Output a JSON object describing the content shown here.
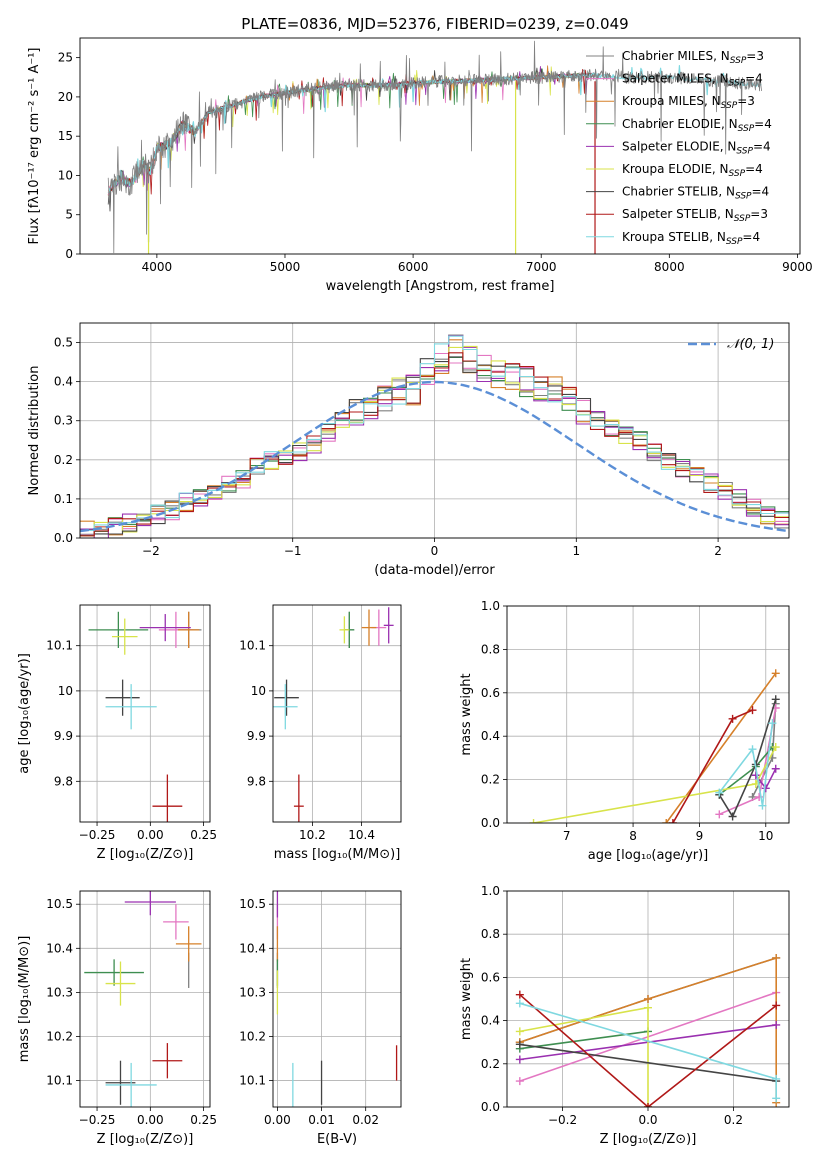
{
  "figure": {
    "title": "PLATE=0836, MJD=52376, FIBERID=0239, z=0.049"
  },
  "colors": {
    "Chabrier MILES": "#808080",
    "Salpeter MILES": "#e377c2",
    "Kroupa MILES": "#d6802a",
    "Chabrier ELODIE": "#3e8e50",
    "Salpeter ELODIE": "#9a30b0",
    "Kroupa ELODIE": "#d8e34a",
    "Chabrier STELIB": "#444444",
    "Salpeter STELIB": "#b01818",
    "Kroupa STELIB": "#7fd8e0",
    "normal_curve": "#5b8fd6"
  },
  "chart_data": [
    {
      "id": "spectrum",
      "type": "line",
      "xlabel": "wavelength [Angstrom, rest frame]",
      "ylabel": "Flux [fλ10⁻¹⁷ erg cm⁻² s⁻¹ A⁻¹]",
      "xlim": [
        3400,
        9020
      ],
      "ylim": [
        0,
        27.5
      ],
      "xticks": [
        4000,
        5000,
        6000,
        7000,
        8000,
        9000
      ],
      "yticks": [
        0,
        5,
        10,
        15,
        20,
        25
      ],
      "grid": false,
      "legend_position": "top-right",
      "series": [
        {
          "name": "Chabrier MILES",
          "label_plain": "Chabrier MILES, N",
          "sub": "SSP",
          "tail": "=3"
        },
        {
          "name": "Salpeter MILES",
          "label_plain": "Salpeter MILES, N",
          "sub": "SSP",
          "tail": "=4"
        },
        {
          "name": "Kroupa MILES",
          "label_plain": "Kroupa MILES, N",
          "sub": "SSP",
          "tail": "=3"
        },
        {
          "name": "Chabrier ELODIE",
          "label_plain": "Chabrier ELODIE, N",
          "sub": "SSP",
          "tail": "=4"
        },
        {
          "name": "Salpeter ELODIE",
          "label_plain": "Salpeter ELODIE, N",
          "sub": "SSP",
          "tail": "=4"
        },
        {
          "name": "Kroupa ELODIE",
          "label_plain": "Kroupa ELODIE, N",
          "sub": "SSP",
          "tail": "=4"
        },
        {
          "name": "Chabrier STELIB",
          "label_plain": "Chabrier STELIB, N",
          "sub": "SSP",
          "tail": "=4"
        },
        {
          "name": "Salpeter STELIB",
          "label_plain": "Salpeter STELIB, N",
          "sub": "SSP",
          "tail": "=3"
        },
        {
          "name": "Kroupa STELIB",
          "label_plain": "Kroupa STELIB, N",
          "sub": "SSP",
          "tail": "=4"
        }
      ],
      "continuum": {
        "x": [
          3620,
          3700,
          3800,
          3900,
          3950,
          4000,
          4100,
          4200,
          4300,
          4400,
          4500,
          4600,
          4800,
          5000,
          5200,
          5500,
          5800,
          6000,
          6300,
          6600,
          7000,
          7400,
          7600,
          8000,
          8400,
          8700
        ],
        "y": [
          8.0,
          9.5,
          9.0,
          11.5,
          10.5,
          13.5,
          14.0,
          16.5,
          15.5,
          18.0,
          18.5,
          19.0,
          20.0,
          20.5,
          21.0,
          21.5,
          21.5,
          21.8,
          22.0,
          22.2,
          22.5,
          22.8,
          22.5,
          22.5,
          22.0,
          21.5
        ]
      },
      "vertical_features": [
        {
          "series": "Kroupa ELODIE",
          "x": 6800,
          "y_from": 0,
          "y_to": 22
        },
        {
          "series": "Salpeter STELIB",
          "x": 7420,
          "y_from": 0,
          "y_to": 22
        },
        {
          "series": "Chabrier MILES",
          "x": 3935,
          "y_from": 1.5,
          "y_to": 12
        },
        {
          "series": "Kroupa ELODIE",
          "x": 3935,
          "y_from": 0,
          "y_to": 9
        }
      ]
    },
    {
      "id": "residual_histogram",
      "type": "histogram",
      "xlabel": "(data-model)/error",
      "ylabel": "Normed distribution",
      "xlim": [
        -2.5,
        2.5
      ],
      "ylim": [
        0,
        0.55
      ],
      "xticks": [
        -2,
        -1,
        0,
        1,
        2
      ],
      "yticks": [
        0.0,
        0.1,
        0.2,
        0.3,
        0.4,
        0.5
      ],
      "grid": true,
      "legend_position": "top-right",
      "legend_label": "𝒩(0, 1)",
      "bin_width": 0.1,
      "bin_start": -2.5,
      "envelope": [
        0.02,
        0.02,
        0.03,
        0.04,
        0.05,
        0.06,
        0.07,
        0.09,
        0.1,
        0.12,
        0.14,
        0.15,
        0.18,
        0.2,
        0.2,
        0.22,
        0.24,
        0.27,
        0.3,
        0.32,
        0.34,
        0.36,
        0.37,
        0.38,
        0.42,
        0.46,
        0.48,
        0.46,
        0.44,
        0.42,
        0.41,
        0.4,
        0.39,
        0.38,
        0.36,
        0.33,
        0.3,
        0.28,
        0.26,
        0.25,
        0.22,
        0.2,
        0.18,
        0.16,
        0.14,
        0.12,
        0.1,
        0.08,
        0.06,
        0.05
      ],
      "normal_curve": {
        "mean": 0,
        "std": 1
      }
    },
    {
      "id": "age_vs_Z",
      "type": "scatter",
      "xlabel": "Z [log₁₀(Z/Z⊙)]",
      "ylabel": "age  [log₁₀(age/yr)]",
      "xlim": [
        -0.33,
        0.28
      ],
      "ylim": [
        9.71,
        10.19
      ],
      "xticks": [
        -0.25,
        0.0,
        0.25
      ],
      "xticklabels": [
        "−0.25",
        "0.00",
        "0.25"
      ],
      "yticks": [
        9.8,
        9.9,
        10.0,
        10.1
      ],
      "grid": true,
      "points": [
        {
          "series": "Chabrier MILES",
          "x": 0.18,
          "y": 10.135,
          "xerr": 0.06,
          "yerr": 0.04
        },
        {
          "series": "Salpeter MILES",
          "x": 0.12,
          "y": 10.135,
          "xerr": 0.08,
          "yerr": 0.04
        },
        {
          "series": "Kroupa MILES",
          "x": 0.18,
          "y": 10.135,
          "xerr": 0.05,
          "yerr": 0.04
        },
        {
          "series": "Chabrier ELODIE",
          "x": -0.15,
          "y": 10.135,
          "xerr": 0.14,
          "yerr": 0.04
        },
        {
          "series": "Salpeter ELODIE",
          "x": 0.07,
          "y": 10.14,
          "xerr": 0.12,
          "yerr": 0.03
        },
        {
          "series": "Kroupa ELODIE",
          "x": -0.12,
          "y": 10.12,
          "xerr": 0.06,
          "yerr": 0.04
        },
        {
          "series": "Chabrier STELIB",
          "x": -0.13,
          "y": 9.985,
          "xerr": 0.08,
          "yerr": 0.04
        },
        {
          "series": "Salpeter STELIB",
          "x": 0.08,
          "y": 9.745,
          "xerr": 0.07,
          "yerr": 0.07
        },
        {
          "series": "Kroupa STELIB",
          "x": -0.09,
          "y": 9.965,
          "xerr": 0.12,
          "yerr": 0.05
        }
      ]
    },
    {
      "id": "age_vs_mass",
      "type": "scatter",
      "xlabel": "mass [log₁₀(M/M⊙)]",
      "ylabel": "",
      "xlim": [
        10.04,
        10.56
      ],
      "ylim": [
        9.71,
        10.19
      ],
      "xticks": [
        10.2,
        10.4
      ],
      "yticks": [
        9.8,
        9.9,
        10.0,
        10.1
      ],
      "grid": true,
      "points": [
        {
          "series": "Chabrier MILES",
          "x": 10.35,
          "y": 10.135,
          "xerr": 0.02,
          "yerr": 0.04
        },
        {
          "series": "Salpeter MILES",
          "x": 10.47,
          "y": 10.14,
          "xerr": 0.03,
          "yerr": 0.04
        },
        {
          "series": "Kroupa MILES",
          "x": 10.43,
          "y": 10.14,
          "xerr": 0.03,
          "yerr": 0.04
        },
        {
          "series": "Chabrier ELODIE",
          "x": 10.35,
          "y": 10.135,
          "xerr": 0.02,
          "yerr": 0.04
        },
        {
          "series": "Salpeter ELODIE",
          "x": 10.51,
          "y": 10.145,
          "xerr": 0.02,
          "yerr": 0.04
        },
        {
          "series": "Kroupa ELODIE",
          "x": 10.33,
          "y": 10.135,
          "xerr": 0.02,
          "yerr": 0.03
        },
        {
          "series": "Chabrier STELIB",
          "x": 10.095,
          "y": 9.985,
          "xerr": 0.05,
          "yerr": 0.04
        },
        {
          "series": "Salpeter STELIB",
          "x": 10.145,
          "y": 9.745,
          "xerr": 0.02,
          "yerr": 0.07
        },
        {
          "series": "Kroupa STELIB",
          "x": 10.09,
          "y": 9.965,
          "xerr": 0.05,
          "yerr": 0.05
        }
      ]
    },
    {
      "id": "massweight_vs_age",
      "type": "line",
      "xlabel": "age  [log₁₀(age/yr)]",
      "ylabel": "mass weight",
      "xlim": [
        6.1,
        10.35
      ],
      "ylim": [
        0,
        1
      ],
      "xticks": [
        7,
        8,
        9,
        10
      ],
      "yticks": [
        0.0,
        0.2,
        0.4,
        0.6,
        0.8,
        1.0
      ],
      "grid": true,
      "series": [
        {
          "name": "Chabrier MILES",
          "x": [
            9.8,
            10.1,
            10.15
          ],
          "y": [
            0.12,
            0.3,
            0.55
          ]
        },
        {
          "name": "Salpeter MILES",
          "x": [
            9.3,
            9.9,
            10.15
          ],
          "y": [
            0.04,
            0.12,
            0.53
          ]
        },
        {
          "name": "Kroupa MILES",
          "x": [
            8.5,
            10.15
          ],
          "y": [
            0.0,
            0.69
          ]
        },
        {
          "name": "Chabrier ELODIE",
          "x": [
            9.3,
            9.85,
            10.1
          ],
          "y": [
            0.13,
            0.26,
            0.35
          ]
        },
        {
          "name": "Salpeter ELODIE",
          "x": [
            9.85,
            10.0,
            10.15
          ],
          "y": [
            0.22,
            0.16,
            0.25
          ]
        },
        {
          "name": "Kroupa ELODIE",
          "x": [
            6.5,
            9.85,
            10.15
          ],
          "y": [
            0.0,
            0.18,
            0.35
          ]
        },
        {
          "name": "Chabrier STELIB",
          "x": [
            9.3,
            9.5,
            9.85,
            10.15
          ],
          "y": [
            0.13,
            0.03,
            0.27,
            0.57
          ]
        },
        {
          "name": "Salpeter STELIB",
          "x": [
            8.6,
            9.5,
            9.8
          ],
          "y": [
            0.0,
            0.48,
            0.52
          ]
        },
        {
          "name": "Kroupa STELIB",
          "x": [
            9.3,
            9.8,
            9.95,
            10.1
          ],
          "y": [
            0.14,
            0.34,
            0.08,
            0.46
          ]
        }
      ]
    },
    {
      "id": "mass_vs_Z",
      "type": "scatter",
      "xlabel": "Z [log₁₀(Z/Z⊙)]",
      "ylabel": "mass [log₁₀(M/M⊙)]",
      "xlim": [
        -0.33,
        0.28
      ],
      "ylim": [
        10.04,
        10.53
      ],
      "xticks": [
        -0.25,
        0.0,
        0.25
      ],
      "xticklabels": [
        "−0.25",
        "0.00",
        "0.25"
      ],
      "yticks": [
        10.1,
        10.2,
        10.3,
        10.4,
        10.5
      ],
      "grid": true,
      "points": [
        {
          "series": "Chabrier MILES",
          "x": 0.18,
          "y": 10.35,
          "xerr": 0.0,
          "yerr": 0.04
        },
        {
          "series": "Salpeter MILES",
          "x": 0.12,
          "y": 10.46,
          "xerr": 0.06,
          "yerr": 0.04
        },
        {
          "series": "Kroupa MILES",
          "x": 0.18,
          "y": 10.41,
          "xerr": 0.06,
          "yerr": 0.04
        },
        {
          "series": "Chabrier ELODIE",
          "x": -0.17,
          "y": 10.345,
          "xerr": 0.14,
          "yerr": 0.03
        },
        {
          "series": "Salpeter ELODIE",
          "x": 0.0,
          "y": 10.505,
          "xerr": 0.12,
          "yerr": 0.03
        },
        {
          "series": "Kroupa ELODIE",
          "x": -0.14,
          "y": 10.32,
          "xerr": 0.07,
          "yerr": 0.05
        },
        {
          "series": "Chabrier STELIB",
          "x": -0.14,
          "y": 10.095,
          "xerr": 0.07,
          "yerr": 0.05
        },
        {
          "series": "Salpeter STELIB",
          "x": 0.08,
          "y": 10.145,
          "xerr": 0.07,
          "yerr": 0.04
        },
        {
          "series": "Kroupa STELIB",
          "x": -0.09,
          "y": 10.09,
          "xerr": 0.12,
          "yerr": 0.05
        }
      ]
    },
    {
      "id": "mass_vs_ebv",
      "type": "scatter",
      "xlabel": "E(B-V)",
      "ylabel": "",
      "xlim": [
        -0.001,
        0.028
      ],
      "ylim": [
        10.04,
        10.53
      ],
      "xticks": [
        0.0,
        0.01,
        0.02
      ],
      "xticklabels": [
        "0.00",
        "0.01",
        "0.02"
      ],
      "yticks": [
        10.1,
        10.2,
        10.3,
        10.4,
        10.5
      ],
      "grid": true,
      "points": [
        {
          "series": "Chabrier MILES",
          "x": 0.0,
          "y": 10.35,
          "xerr": 0.0,
          "yerr": 0.04
        },
        {
          "series": "Salpeter MILES",
          "x": 0.0,
          "y": 10.46,
          "xerr": 0.0,
          "yerr": 0.04
        },
        {
          "series": "Kroupa MILES",
          "x": 0.0,
          "y": 10.41,
          "xerr": 0.0,
          "yerr": 0.04
        },
        {
          "series": "Chabrier ELODIE",
          "x": 0.0,
          "y": 10.345,
          "xerr": 0.0,
          "yerr": 0.03
        },
        {
          "series": "Salpeter ELODIE",
          "x": 0.0,
          "y": 10.5,
          "xerr": 0.0,
          "yerr": 0.03
        },
        {
          "series": "Kroupa ELODIE",
          "x": 0.0,
          "y": 10.3,
          "xerr": 0.0,
          "yerr": 0.05
        },
        {
          "series": "Chabrier STELIB",
          "x": 0.01,
          "y": 10.095,
          "xerr": 0.0,
          "yerr": 0.05
        },
        {
          "series": "Salpeter STELIB",
          "x": 0.027,
          "y": 10.14,
          "xerr": 0.0,
          "yerr": 0.04
        },
        {
          "series": "Kroupa STELIB",
          "x": 0.0035,
          "y": 10.09,
          "xerr": 0.0,
          "yerr": 0.05
        }
      ]
    },
    {
      "id": "massweight_vs_Z",
      "type": "line",
      "xlabel": "Z [log₁₀(Z/Z⊙)]",
      "ylabel": "mass weight",
      "xlim": [
        -0.33,
        0.33
      ],
      "ylim": [
        0,
        1
      ],
      "xticks": [
        -0.2,
        0.0,
        0.2
      ],
      "xticklabels": [
        "−0.2",
        "0.0",
        "0.2"
      ],
      "yticks": [
        0.0,
        0.2,
        0.4,
        0.6,
        0.8,
        1.0
      ],
      "grid": true,
      "series": [
        {
          "name": "Chabrier MILES",
          "x": [
            -0.3,
            0.0,
            0.3
          ],
          "y": [
            0.3,
            0.5,
            0.69
          ]
        },
        {
          "name": "Salpeter MILES",
          "x": [
            -0.3,
            0.3
          ],
          "y": [
            0.12,
            0.53
          ]
        },
        {
          "name": "Kroupa MILES",
          "x": [
            -0.3,
            0.0,
            0.3,
            0.3
          ],
          "y": [
            0.3,
            0.5,
            0.69,
            0.02
          ]
        },
        {
          "name": "Chabrier ELODIE",
          "x": [
            -0.3,
            0.0
          ],
          "y": [
            0.27,
            0.35
          ]
        },
        {
          "name": "Salpeter ELODIE",
          "x": [
            -0.3,
            0.3
          ],
          "y": [
            0.22,
            0.38
          ]
        },
        {
          "name": "Kroupa ELODIE",
          "x": [
            -0.3,
            0.0,
            0.0
          ],
          "y": [
            0.35,
            0.46,
            0.0
          ]
        },
        {
          "name": "Chabrier STELIB",
          "x": [
            -0.3,
            0.3
          ],
          "y": [
            0.29,
            0.12
          ]
        },
        {
          "name": "Salpeter STELIB",
          "x": [
            -0.3,
            0.0,
            0.3
          ],
          "y": [
            0.52,
            0.0,
            0.47
          ]
        },
        {
          "name": "Kroupa STELIB",
          "x": [
            -0.3,
            0.3,
            0.3
          ],
          "y": [
            0.48,
            0.13,
            0.04
          ]
        }
      ]
    }
  ]
}
